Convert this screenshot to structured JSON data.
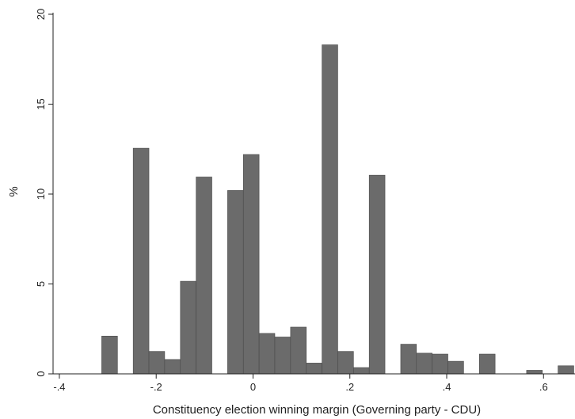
{
  "chart_data": {
    "type": "bar",
    "subtype": "histogram",
    "title": "",
    "xlabel": "Constituency election winning margin (Governing party - CDU)",
    "ylabel": "%",
    "xlim": [
      -0.413,
      0.665
    ],
    "ylim": [
      0,
      20
    ],
    "grid": false,
    "bar_color": "#6b6b6b",
    "bar_edge_color": "#4a4a4a",
    "bin_width": 0.0325,
    "x_ticks": [
      {
        "value": -0.4,
        "label": "-.4"
      },
      {
        "value": -0.2,
        "label": "-.2"
      },
      {
        "value": 0,
        "label": "0"
      },
      {
        "value": 0.2,
        "label": ".2"
      },
      {
        "value": 0.4,
        "label": ".4"
      },
      {
        "value": 0.6,
        "label": ".6"
      }
    ],
    "y_ticks": [
      {
        "value": 0,
        "label": "0"
      },
      {
        "value": 5,
        "label": "5"
      },
      {
        "value": 10,
        "label": "10"
      },
      {
        "value": 15,
        "label": "15"
      },
      {
        "value": 20,
        "label": "20"
      }
    ],
    "bins": [
      {
        "x_start": -0.3125,
        "value": 2.1
      },
      {
        "x_start": -0.2475,
        "value": 12.55
      },
      {
        "x_start": -0.215,
        "value": 1.25
      },
      {
        "x_start": -0.1825,
        "value": 0.8
      },
      {
        "x_start": -0.15,
        "value": 5.15
      },
      {
        "x_start": -0.1175,
        "value": 10.95
      },
      {
        "x_start": -0.0525,
        "value": 10.2
      },
      {
        "x_start": -0.02,
        "value": 12.2
      },
      {
        "x_start": 0.0125,
        "value": 2.25
      },
      {
        "x_start": 0.045,
        "value": 2.05
      },
      {
        "x_start": 0.0775,
        "value": 2.6
      },
      {
        "x_start": 0.11,
        "value": 0.6
      },
      {
        "x_start": 0.1425,
        "value": 18.3
      },
      {
        "x_start": 0.175,
        "value": 1.25
      },
      {
        "x_start": 0.2075,
        "value": 0.35
      },
      {
        "x_start": 0.24,
        "value": 11.05
      },
      {
        "x_start": 0.305,
        "value": 1.65
      },
      {
        "x_start": 0.3375,
        "value": 1.15
      },
      {
        "x_start": 0.37,
        "value": 1.1
      },
      {
        "x_start": 0.4025,
        "value": 0.7
      },
      {
        "x_start": 0.4675,
        "value": 1.1
      },
      {
        "x_start": 0.565,
        "value": 0.2
      },
      {
        "x_start": 0.63,
        "value": 0.45
      }
    ]
  }
}
